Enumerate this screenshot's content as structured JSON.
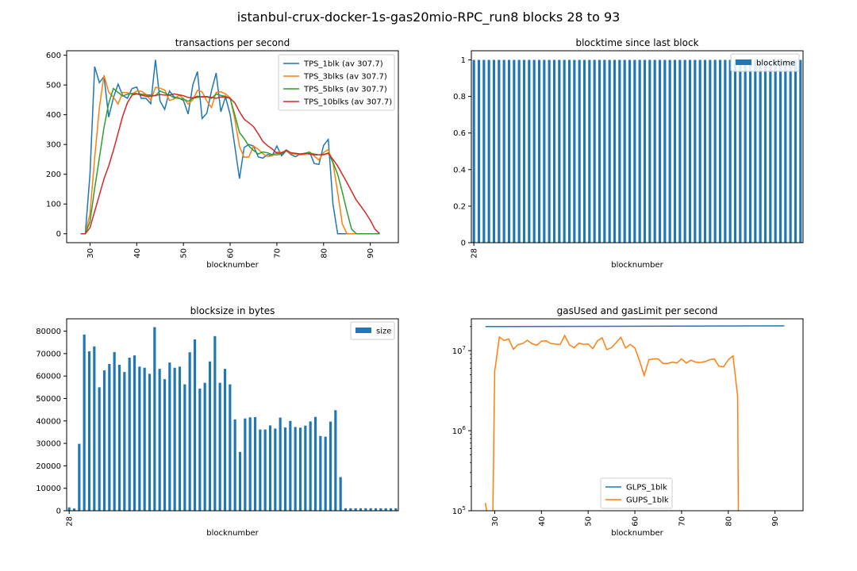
{
  "figure_title": "istanbul-crux-docker-1s-gas20mio-RPC_run8 blocks 28 to 93",
  "chart_data": [
    {
      "type": "line",
      "title": "transactions per second",
      "xlabel": "blocknumber",
      "ylabel": "",
      "xlim": [
        25,
        96
      ],
      "ylim": [
        -30,
        615
      ],
      "xticks": [
        30,
        40,
        50,
        60,
        70,
        80,
        90
      ],
      "yticks": [
        0,
        100,
        200,
        300,
        400,
        500,
        600
      ],
      "legend_position": "top-right",
      "x": [
        28,
        29,
        30,
        31,
        32,
        33,
        34,
        35,
        36,
        37,
        38,
        39,
        40,
        41,
        42,
        43,
        44,
        45,
        46,
        47,
        48,
        49,
        50,
        51,
        52,
        53,
        54,
        55,
        56,
        57,
        58,
        59,
        60,
        61,
        62,
        63,
        64,
        65,
        66,
        67,
        68,
        69,
        70,
        71,
        72,
        73,
        74,
        75,
        76,
        77,
        78,
        79,
        80,
        81,
        82,
        83,
        84,
        85,
        86,
        87,
        88,
        89,
        90,
        91,
        92
      ],
      "series": [
        {
          "name": "TPS_1blk (av 307.7)",
          "color": "#1f77b4",
          "values": [
            0,
            0,
            200,
            562,
            508,
            528,
            392,
            457,
            503,
            465,
            455,
            488,
            493,
            455,
            455,
            437,
            585,
            446,
            418,
            480,
            460,
            457,
            448,
            402,
            500,
            545,
            387,
            405,
            480,
            540,
            410,
            460,
            400,
            295,
            185,
            290,
            300,
            295,
            258,
            254,
            266,
            262,
            295,
            262,
            279,
            266,
            259,
            268,
            270,
            275,
            236,
            233,
            297,
            317,
            100,
            0,
            0,
            0,
            0,
            0,
            0,
            0,
            0,
            0,
            0
          ]
        },
        {
          "name": "TPS_3blks (av 307.7)",
          "color": "#ff7f0e",
          "values": [
            0,
            0,
            67,
            254,
            423,
            533,
            476,
            459,
            436,
            475,
            474,
            469,
            479,
            479,
            468,
            449,
            492,
            489,
            483,
            448,
            453,
            466,
            455,
            436,
            450,
            482,
            477,
            446,
            424,
            475,
            477,
            470,
            457,
            385,
            293,
            257,
            258,
            295,
            284,
            269,
            259,
            262,
            275,
            273,
            279,
            269,
            268,
            265,
            266,
            275,
            261,
            248,
            273,
            283,
            239,
            139,
            33,
            0,
            0,
            0,
            0,
            0,
            0,
            0,
            0
          ]
        },
        {
          "name": "TPS_5blks (av 307.7)",
          "color": "#2ca02c",
          "values": [
            0,
            0,
            40,
            152,
            254,
            358,
            438,
            488,
            475,
            463,
            469,
            472,
            471,
            469,
            467,
            466,
            464,
            480,
            473,
            466,
            457,
            455,
            453,
            445,
            455,
            458,
            461,
            460,
            455,
            470,
            465,
            462,
            454,
            400,
            340,
            320,
            295,
            280,
            268,
            275,
            272,
            266,
            265,
            268,
            282,
            272,
            270,
            268,
            270,
            272,
            268,
            265,
            265,
            272,
            240,
            200,
            140,
            75,
            15,
            0,
            0,
            0,
            0,
            0,
            0
          ]
        },
        {
          "name": "TPS_10blks (av 307.7)",
          "color": "#d62728",
          "values": [
            0,
            0,
            20,
            75,
            130,
            185,
            228,
            280,
            338,
            395,
            440,
            466,
            470,
            466,
            462,
            462,
            465,
            468,
            466,
            466,
            470,
            467,
            464,
            458,
            457,
            462,
            460,
            461,
            458,
            455,
            460,
            459,
            455,
            440,
            410,
            385,
            373,
            360,
            336,
            310,
            296,
            285,
            270,
            272,
            280,
            272,
            270,
            268,
            270,
            268,
            265,
            265,
            266,
            270,
            250,
            228,
            200,
            172,
            143,
            113,
            92,
            70,
            45,
            15,
            0
          ]
        }
      ]
    },
    {
      "type": "bar",
      "title": "blocktime since last block",
      "xlabel": "blocknumber",
      "ylabel": "",
      "ylim": [
        0,
        1.05
      ],
      "yticks": [
        0.0,
        0.2,
        0.4,
        0.6,
        0.8,
        1.0
      ],
      "xtick_labels": [
        "28"
      ],
      "legend_position": "top-right",
      "series": [
        {
          "name": "blocktime",
          "color": "#1f77b4",
          "values": [
            1,
            1,
            1,
            1,
            1,
            1,
            1,
            1,
            1,
            1,
            1,
            1,
            1,
            1,
            1,
            1,
            1,
            1,
            1,
            1,
            1,
            1,
            1,
            1,
            1,
            1,
            1,
            1,
            1,
            1,
            1,
            1,
            1,
            1,
            1,
            1,
            1,
            1,
            1,
            1,
            1,
            1,
            1,
            1,
            1,
            1,
            1,
            1,
            1,
            1,
            1,
            1,
            1,
            1,
            1,
            1,
            1,
            1,
            1,
            1,
            1,
            1,
            1,
            1,
            1,
            1
          ]
        }
      ]
    },
    {
      "type": "bar",
      "title": "blocksize in bytes",
      "xlabel": "blocknumber",
      "ylabel": "",
      "ylim": [
        0,
        85500
      ],
      "yticks": [
        0,
        10000,
        20000,
        30000,
        40000,
        50000,
        60000,
        70000,
        80000
      ],
      "xtick_labels": [
        "28"
      ],
      "legend_position": "top-right",
      "series": [
        {
          "name": "size",
          "color": "#1f77b4",
          "values": [
            1500,
            1000,
            29800,
            78500,
            71000,
            73200,
            55000,
            62500,
            65400,
            70700,
            65000,
            61800,
            68200,
            69200,
            64200,
            63700,
            61000,
            81800,
            63200,
            58600,
            66000,
            63700,
            64200,
            56300,
            70600,
            76300,
            54400,
            57000,
            66500,
            77800,
            57000,
            63200,
            56300,
            40700,
            26200,
            41100,
            41600,
            41700,
            36200,
            36200,
            38000,
            36600,
            41500,
            37100,
            40000,
            37300,
            37000,
            37900,
            39800,
            41800,
            33300,
            33000,
            39700,
            44800,
            15000,
            1100,
            1100,
            1100,
            1100,
            1100,
            1100,
            1100,
            1100,
            1100,
            1100,
            1100
          ]
        }
      ]
    },
    {
      "type": "line",
      "title": "gasUsed and gasLimit per second",
      "xlabel": "blocknumber",
      "ylabel": "",
      "yscale": "log",
      "xlim": [
        25,
        96
      ],
      "ylim": [
        100000,
        25000000
      ],
      "xticks": [
        30,
        40,
        50,
        60,
        70,
        80,
        90
      ],
      "ytick_labels": [
        "10^5",
        "10^6",
        "10^7"
      ],
      "legend_position": "lower-center",
      "series": [
        {
          "name": "GLPS_1blk",
          "color": "#1f77b4",
          "x": [
            28,
            92
          ],
          "values": [
            20000000,
            20400000
          ]
        },
        {
          "name": "GUPS_1blk",
          "color": "#ff7f0e",
          "x": [
            28,
            28.3,
            29.6,
            30,
            31,
            32,
            33,
            34,
            35,
            36,
            37,
            38,
            39,
            40,
            41,
            42,
            43,
            44,
            45,
            46,
            47,
            48,
            49,
            50,
            51,
            52,
            53,
            54,
            55,
            56,
            57,
            58,
            59,
            60,
            61,
            62,
            63,
            64,
            65,
            66,
            67,
            68,
            69,
            70,
            71,
            72,
            73,
            74,
            75,
            76,
            77,
            78,
            79,
            80,
            81,
            82,
            82.15
          ],
          "values": [
            125000,
            95000,
            95000,
            5500000,
            14800000,
            13400000,
            14000000,
            10400000,
            11900000,
            12300000,
            13500000,
            12200000,
            11700000,
            13100000,
            13300000,
            12300000,
            12100000,
            11900000,
            15500000,
            11800000,
            10900000,
            12400000,
            12000000,
            12100000,
            10600000,
            13300000,
            14500000,
            10300000,
            10900000,
            12600000,
            14700000,
            10800000,
            12000000,
            10800000,
            7500000,
            4900000,
            7700000,
            7900000,
            7900000,
            6900000,
            6900000,
            7200000,
            7000000,
            7900000,
            7000000,
            7600000,
            7200000,
            7100000,
            7300000,
            7700000,
            7900000,
            6400000,
            6300000,
            7700000,
            8600000,
            2700000,
            95000
          ]
        }
      ]
    }
  ]
}
